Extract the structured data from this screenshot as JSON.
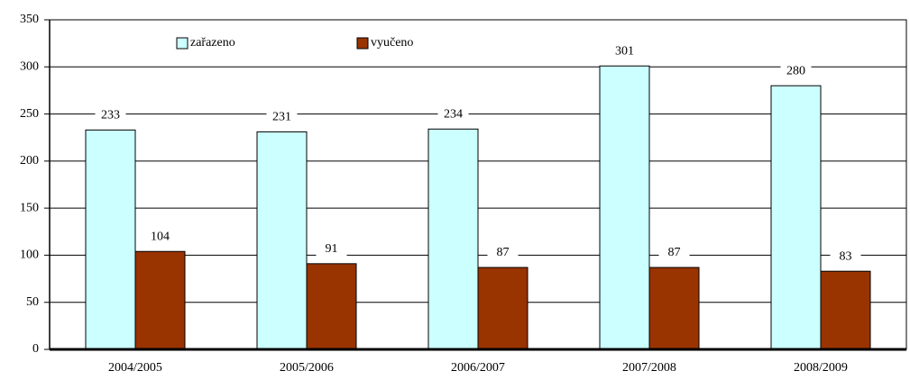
{
  "chart_data": {
    "type": "bar",
    "categories": [
      "2004/2005",
      "2005/2006",
      "2006/2007",
      "2007/2008",
      "2008/2009"
    ],
    "series": [
      {
        "name": "zařazeno",
        "color": "#ccffff",
        "values": [
          233,
          231,
          234,
          301,
          280
        ]
      },
      {
        "name": "vyučeno",
        "color": "#993300",
        "values": [
          104,
          91,
          87,
          87,
          83
        ]
      }
    ],
    "ylim": [
      0,
      350
    ],
    "yticks": [
      0,
      50,
      100,
      150,
      200,
      250,
      300,
      350
    ],
    "grid": true
  }
}
